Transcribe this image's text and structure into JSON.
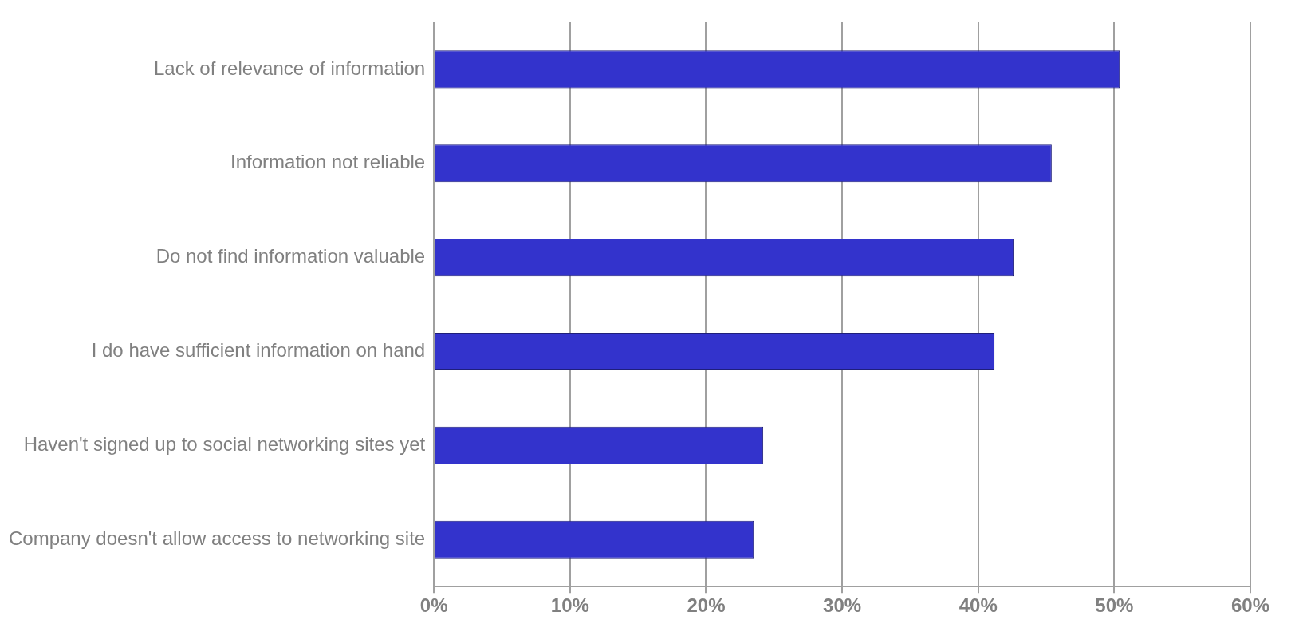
{
  "chart_data": {
    "type": "bar",
    "orientation": "horizontal",
    "categories": [
      "Lack of relevance of information",
      "Information not reliable",
      "Do not find information valuable",
      "I do have sufficient information on hand",
      "Haven't signed up to social networking sites yet",
      "Company doesn't allow access to networking site"
    ],
    "values": [
      50.4,
      45.4,
      42.6,
      41.2,
      24.2,
      23.5
    ],
    "color": "#3333cc",
    "xlim": [
      0,
      60
    ],
    "xticks": [
      {
        "value": 0,
        "label": "0%"
      },
      {
        "value": 10,
        "label": "10%"
      },
      {
        "value": 20,
        "label": "20%"
      },
      {
        "value": 30,
        "label": "30%"
      },
      {
        "value": 40,
        "label": "40%"
      },
      {
        "value": 50,
        "label": "50%"
      },
      {
        "value": 60,
        "label": "60%"
      }
    ],
    "grid": "x"
  }
}
